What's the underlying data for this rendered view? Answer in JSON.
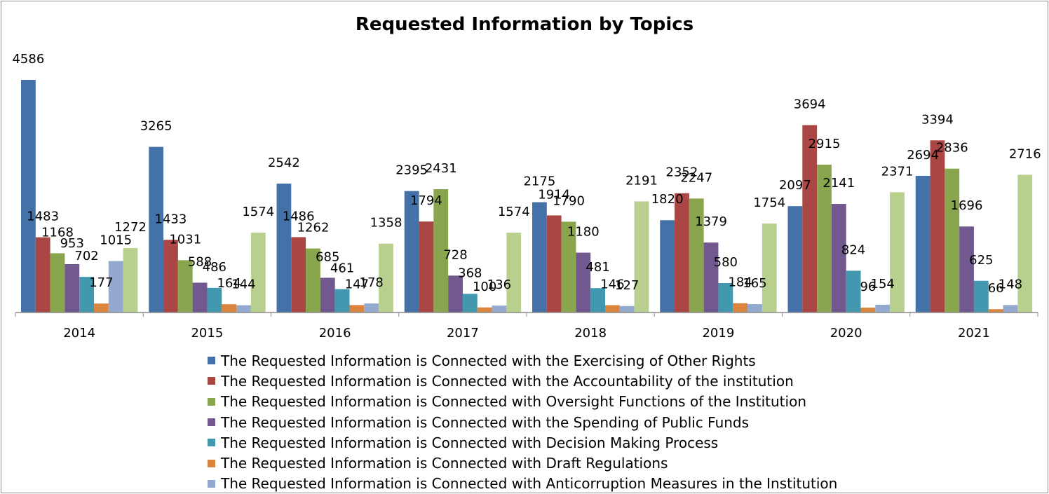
{
  "chart_data": {
    "type": "bar",
    "title": "Requested Information by Topics",
    "xlabel": "",
    "ylabel": "",
    "ylim": [
      0,
      4586
    ],
    "grid": false,
    "legend_position": "bottom",
    "categories": [
      "2014",
      "2015",
      "2016",
      "2017",
      "2018",
      "2019",
      "2020",
      "2021"
    ],
    "series": [
      {
        "name": "The Requested Information is Connected with the Exercising of Other Rights",
        "color": "#4472a8",
        "values": [
          4586,
          3265,
          2542,
          2395,
          2175,
          1820,
          2097,
          2694
        ]
      },
      {
        "name": "The Requested Information is Connected with the Accountability of the institution",
        "color": "#aa4643",
        "values": [
          1483,
          1433,
          1486,
          1794,
          1914,
          2352,
          3694,
          3394
        ]
      },
      {
        "name": "The Requested Information is Connected with Oversight Functions of the Institution",
        "color": "#89a54e",
        "values": [
          1168,
          1031,
          1262,
          2431,
          1790,
          2247,
          2915,
          2836
        ]
      },
      {
        "name": "The Requested Information is Connected with the Spending of Public Funds",
        "color": "#71588f",
        "values": [
          953,
          588,
          685,
          728,
          1180,
          1379,
          2141,
          1696
        ]
      },
      {
        "name": "The Requested Information is Connected with Decision Making Process",
        "color": "#4198af",
        "values": [
          702,
          486,
          461,
          368,
          481,
          580,
          824,
          625
        ]
      },
      {
        "name": "The Requested Information is Connected with Draft Regulations",
        "color": "#db843d",
        "values": [
          177,
          164,
          147,
          100,
          146,
          184,
          96,
          66
        ]
      },
      {
        "name": "The Requested Information is Connected with Anticorruption Measures in the Institution",
        "color": "#93a9cf",
        "values": [
          1015,
          144,
          178,
          136,
          127,
          165,
          154,
          148
        ]
      },
      {
        "name": "",
        "color": "#b8cf8e",
        "values": [
          1272,
          1574,
          1358,
          1574,
          2191,
          1754,
          2371,
          2716
        ]
      }
    ]
  }
}
